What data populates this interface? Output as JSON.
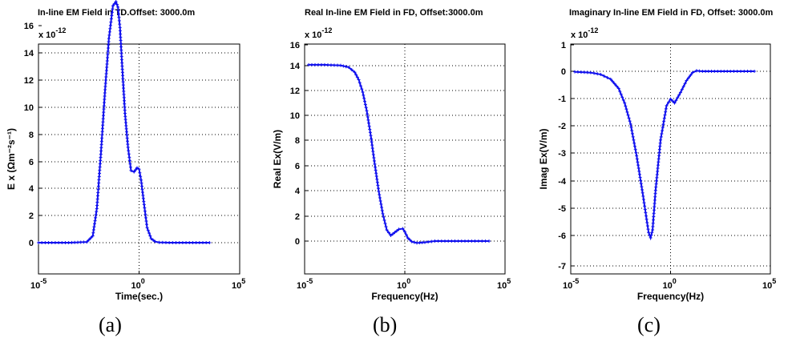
{
  "chart_data": [
    {
      "type": "line",
      "subplot_label": "(a)",
      "title": "In-line EM Field in TD.Offset: 3000.0m",
      "scale_label": "x 10",
      "scale_exp": "-12",
      "xlabel": "Time(sec.)",
      "ylabel": "E x (Ωm⁻²s⁻¹)",
      "xscale": "log",
      "xlim": [
        -5,
        5
      ],
      "ylim": [
        -1.5,
        17.8
      ],
      "xticks": [
        {
          "v": -5,
          "base": "10",
          "exp": "-5"
        },
        {
          "v": 0,
          "base": "10",
          "exp": "0"
        },
        {
          "v": 5,
          "base": "10",
          "exp": "5"
        }
      ],
      "yticks": [
        "0",
        "2",
        "4",
        "6",
        "8",
        "10",
        "12",
        "14",
        "16"
      ],
      "grid": true,
      "color": "#1010ee",
      "series": [
        {
          "x": [
            -5,
            -3.5,
            -2.6,
            -2.3,
            -2.1,
            -1.9,
            -1.7,
            -1.5,
            -1.3,
            -1.15,
            -1.05,
            -0.95,
            -0.85,
            -0.7,
            -0.55,
            -0.4,
            -0.25,
            -0.1,
            0.0,
            0.1,
            0.25,
            0.4,
            0.6,
            0.8,
            1.0,
            1.5,
            2.0,
            3.5
          ],
          "y": [
            0,
            0,
            0.05,
            0.5,
            2.5,
            6.5,
            11.0,
            15.0,
            17.4,
            17.7,
            17.3,
            15.8,
            13.2,
            9.5,
            7.0,
            5.3,
            5.2,
            5.5,
            5.4,
            4.6,
            2.8,
            1.1,
            0.3,
            0.08,
            0.02,
            0,
            0,
            0
          ]
        }
      ]
    },
    {
      "type": "line",
      "subplot_label": "(b)",
      "title": "Real In-line EM Field in FD, Offset:3000.0m",
      "scale_label": "x 10",
      "scale_exp": "-12",
      "xlabel": "Frequency(Hz)",
      "ylabel": "Real Ex(V/m)",
      "xscale": "log",
      "xlim": [
        -5,
        5
      ],
      "ylim": [
        -2.2,
        16
      ],
      "xticks": [
        {
          "v": -5,
          "base": "10",
          "exp": "-5"
        },
        {
          "v": 0,
          "base": "10",
          "exp": "0"
        },
        {
          "v": 5,
          "base": "10",
          "exp": "5"
        }
      ],
      "yticks": [
        "0",
        "2",
        "4",
        "6",
        "8",
        "10",
        "12",
        "14",
        "16"
      ],
      "grid": true,
      "color": "#1010ee",
      "series": [
        {
          "x": [
            -4.8,
            -4.0,
            -3.2,
            -2.8,
            -2.5,
            -2.3,
            -2.1,
            -1.9,
            -1.7,
            -1.5,
            -1.3,
            -1.1,
            -0.9,
            -0.7,
            -0.5,
            -0.3,
            -0.1,
            0.0,
            0.15,
            0.35,
            0.6,
            1.0,
            1.5,
            2.5,
            3.5,
            4.2
          ],
          "y": [
            14.2,
            14.2,
            14.15,
            14.0,
            13.6,
            13.0,
            12.0,
            10.5,
            8.5,
            6.2,
            4.0,
            2.2,
            0.9,
            0.45,
            0.7,
            0.95,
            1.0,
            0.75,
            0.25,
            -0.05,
            -0.15,
            -0.1,
            0,
            0,
            0,
            0
          ]
        }
      ]
    },
    {
      "type": "line",
      "subplot_label": "(c)",
      "title": "Imaginary In-line EM Field in FD, Offset: 3000.0m",
      "scale_label": "x 10",
      "scale_exp": "-12",
      "xlabel": "Frequency(Hz)",
      "ylabel": "Imag Ex(V/m)",
      "xscale": "log",
      "xlim": [
        -5,
        5
      ],
      "ylim": [
        -7,
        1
      ],
      "xticks": [
        {
          "v": -5,
          "base": "10",
          "exp": "-5"
        },
        {
          "v": 0,
          "base": "10",
          "exp": "0"
        },
        {
          "v": 5,
          "base": "10",
          "exp": "5"
        }
      ],
      "yticks": [
        "1",
        "0",
        "-1",
        "-2",
        "-3",
        "-4",
        "-5",
        "-6",
        "-7"
      ],
      "grid": true,
      "color": "#1010ee",
      "series": [
        {
          "x": [
            -4.8,
            -4.0,
            -3.5,
            -3.0,
            -2.6,
            -2.3,
            -2.0,
            -1.7,
            -1.4,
            -1.2,
            -1.1,
            -1.0,
            -0.9,
            -0.75,
            -0.5,
            -0.2,
            0.0,
            0.2,
            0.5,
            0.8,
            1.1,
            1.3,
            1.6,
            2.2,
            3.0,
            4.2
          ],
          "y": [
            -0.02,
            -0.05,
            -0.12,
            -0.3,
            -0.65,
            -1.2,
            -2.0,
            -3.2,
            -4.6,
            -5.6,
            -6.1,
            -6.3,
            -6.0,
            -4.5,
            -2.6,
            -1.3,
            -1.05,
            -1.2,
            -0.8,
            -0.35,
            -0.05,
            0.02,
            0,
            0,
            0,
            0
          ]
        }
      ]
    }
  ]
}
